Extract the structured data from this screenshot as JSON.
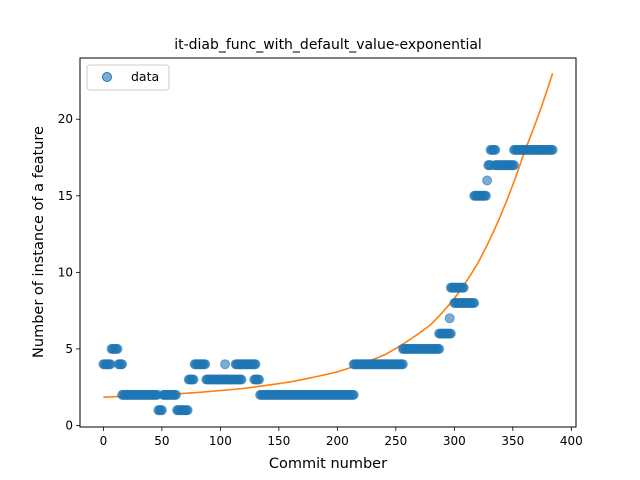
{
  "chart_data": {
    "type": "scatter",
    "title": "it-diab_func_with_default_value-exponential",
    "xlabel": "Commit number",
    "ylabel": "Number of instance of a feature",
    "xlim": [
      -20,
      404
    ],
    "ylim": [
      -0.1,
      24.0
    ],
    "xticks": [
      0,
      50,
      100,
      150,
      200,
      250,
      300,
      350,
      400
    ],
    "yticks": [
      0,
      5,
      10,
      15,
      20
    ],
    "grid": false,
    "legend": {
      "placement": "top-left",
      "entries": [
        "data"
      ]
    },
    "colors": {
      "data": "#1f77b4",
      "fit": "#ff7f0e"
    },
    "series": [
      {
        "name": "data",
        "kind": "scatter",
        "segments": [
          {
            "x_start": 0,
            "x_end": 6,
            "y": 4
          },
          {
            "x_start": 7,
            "x_end": 12,
            "y": 5
          },
          {
            "x_start": 13,
            "x_end": 16,
            "y": 4
          },
          {
            "x_start": 16,
            "x_end": 46,
            "y": 2
          },
          {
            "x_start": 47,
            "x_end": 50,
            "y": 1
          },
          {
            "x_start": 51,
            "x_end": 62,
            "y": 2
          },
          {
            "x_start": 63,
            "x_end": 72,
            "y": 1
          },
          {
            "x_start": 73,
            "x_end": 77,
            "y": 3
          },
          {
            "x_start": 78,
            "x_end": 87,
            "y": 4
          },
          {
            "x_start": 88,
            "x_end": 118,
            "y": 3
          },
          {
            "x_start": 104,
            "x_end": 104,
            "y": 4
          },
          {
            "x_start": 113,
            "x_end": 130,
            "y": 4
          },
          {
            "x_start": 129,
            "x_end": 133,
            "y": 3
          },
          {
            "x_start": 134,
            "x_end": 214,
            "y": 2
          },
          {
            "x_start": 214,
            "x_end": 256,
            "y": 4
          },
          {
            "x_start": 256,
            "x_end": 287,
            "y": 5
          },
          {
            "x_start": 287,
            "x_end": 297,
            "y": 6
          },
          {
            "x_start": 296,
            "x_end": 296,
            "y": 7
          },
          {
            "x_start": 297,
            "x_end": 303,
            "y": 9
          },
          {
            "x_start": 300,
            "x_end": 306,
            "y": 8
          },
          {
            "x_start": 305,
            "x_end": 308,
            "y": 9
          },
          {
            "x_start": 307,
            "x_end": 317,
            "y": 8
          },
          {
            "x_start": 317,
            "x_end": 327,
            "y": 15
          },
          {
            "x_start": 328,
            "x_end": 328,
            "y": 16
          },
          {
            "x_start": 329,
            "x_end": 331,
            "y": 17
          },
          {
            "x_start": 331,
            "x_end": 335,
            "y": 18
          },
          {
            "x_start": 335,
            "x_end": 351,
            "y": 17
          },
          {
            "x_start": 351,
            "x_end": 384,
            "y": 18
          }
        ]
      },
      {
        "name": "",
        "kind": "line",
        "model": "exponential",
        "points": [
          [
            0,
            1.85
          ],
          [
            40,
            1.97
          ],
          [
            80,
            2.15
          ],
          [
            120,
            2.42
          ],
          [
            160,
            2.85
          ],
          [
            200,
            3.5
          ],
          [
            240,
            4.6
          ],
          [
            280,
            6.6
          ],
          [
            300,
            8.3
          ],
          [
            320,
            10.6
          ],
          [
            340,
            13.8
          ],
          [
            360,
            17.9
          ],
          [
            384,
            23.0
          ]
        ]
      }
    ]
  }
}
